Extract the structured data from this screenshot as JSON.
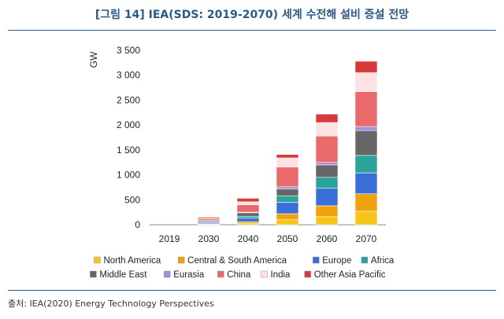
{
  "figure": {
    "title": "[그림 14] IEA(SDS: 2019-2070) 세계 수전해 설비 증설 전망",
    "source": "출처: IEA(2020) Energy Technology Perspectives"
  },
  "chart_data": {
    "type": "bar",
    "stacked": true,
    "title": "",
    "xlabel": "",
    "ylabel": "GW",
    "ylim": [
      0,
      3500
    ],
    "yticks": [
      0,
      500,
      1000,
      1500,
      2000,
      2500,
      3000,
      3500
    ],
    "ytick_labels": [
      "0",
      "500",
      "1 000",
      "1 500",
      "2 000",
      "2 500",
      "3 000",
      "3 500"
    ],
    "legend_position": "bottom",
    "categories": [
      "2019",
      "2030",
      "2040",
      "2050",
      "2060",
      "2070"
    ],
    "series": [
      {
        "name": "North America",
        "color": "#f5c518",
        "values": [
          0,
          10,
          30,
          100,
          160,
          270
        ]
      },
      {
        "name": "Central & South America",
        "color": "#f0a30a",
        "values": [
          0,
          10,
          30,
          120,
          220,
          350
        ]
      },
      {
        "name": "Europe",
        "color": "#3a6fd8",
        "values": [
          0,
          25,
          70,
          230,
          350,
          420
        ]
      },
      {
        "name": "Africa",
        "color": "#2aa39a",
        "values": [
          0,
          10,
          40,
          130,
          220,
          350
        ]
      },
      {
        "name": "Middle East",
        "color": "#666666",
        "values": [
          0,
          25,
          70,
          140,
          250,
          500
        ]
      },
      {
        "name": "Eurasia",
        "color": "#a78be0",
        "values": [
          0,
          5,
          10,
          40,
          50,
          80
        ]
      },
      {
        "name": "China",
        "color": "#e86a6a",
        "values": [
          0,
          30,
          150,
          400,
          530,
          700
        ]
      },
      {
        "name": "India",
        "color": "#fce2e2",
        "values": [
          0,
          10,
          60,
          180,
          270,
          380
        ]
      },
      {
        "name": "Other Asia Pacific",
        "color": "#d63a3a",
        "values": [
          0,
          25,
          70,
          70,
          170,
          230
        ]
      }
    ]
  }
}
